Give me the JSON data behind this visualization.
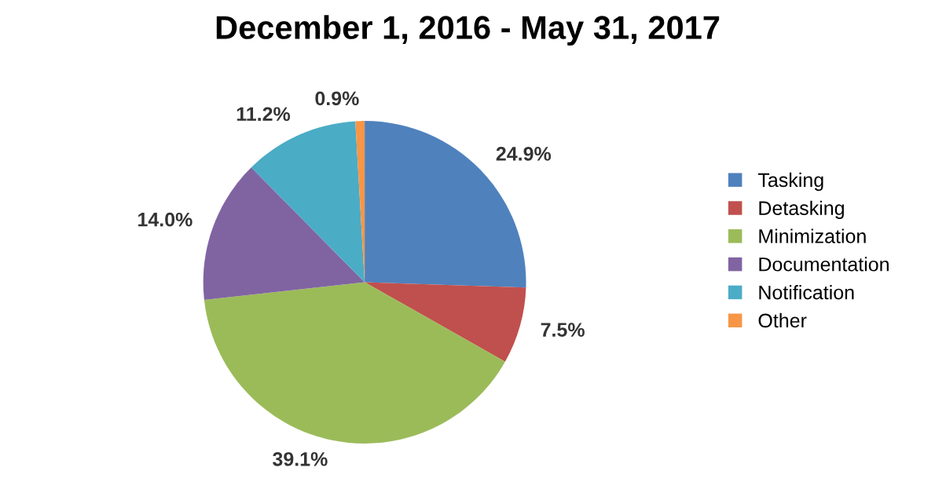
{
  "chart_data": {
    "type": "pie",
    "title": "December 1, 2016 - May 31, 2017",
    "categories": [
      "Tasking",
      "Detasking",
      "Minimization",
      "Documentation",
      "Notification",
      "Other"
    ],
    "values": [
      24.9,
      7.5,
      39.1,
      14.0,
      11.2,
      0.9
    ],
    "value_labels": [
      "24.9%",
      "7.5%",
      "39.1%",
      "14.0%",
      "11.2%",
      "0.9%"
    ],
    "colors": [
      "#4f81bd",
      "#c0504d",
      "#9bbb59",
      "#8064a2",
      "#4bacc6",
      "#f79646"
    ],
    "legend": "right"
  }
}
